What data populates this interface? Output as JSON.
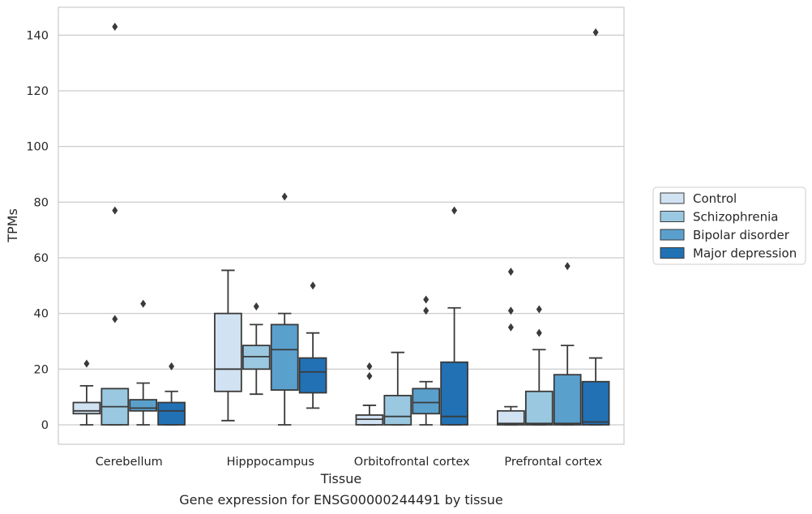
{
  "caption": "Gene expression for ENSG00000244491 by tissue",
  "chart_data": {
    "type": "box",
    "xlabel": "Tissue",
    "ylabel": "TPMs",
    "ylim": [
      -7,
      150
    ],
    "yticks": [
      0,
      20,
      40,
      60,
      80,
      100,
      120,
      140
    ],
    "grid": true,
    "legend_position": "right",
    "categories": [
      "Cerebellum",
      "Hipppocampus",
      "Orbitofrontal cortex",
      "Prefrontal cortex"
    ],
    "series": [
      {
        "name": "Control",
        "color": "#d1e2f2",
        "boxes": [
          {
            "whislo": 0,
            "q1": 4,
            "med": 5,
            "q3": 8,
            "whishi": 14,
            "fliers": [
              22
            ]
          },
          {
            "whislo": 1.5,
            "q1": 12,
            "med": 20,
            "q3": 40,
            "whishi": 55.5,
            "fliers": []
          },
          {
            "whislo": 0,
            "q1": 0,
            "med": 2,
            "q3": 3.5,
            "whishi": 7,
            "fliers": [
              17.5,
              21
            ]
          },
          {
            "whislo": 0,
            "q1": 0,
            "med": 0.5,
            "q3": 5,
            "whishi": 6.5,
            "fliers": [
              35,
              41,
              55
            ]
          }
        ]
      },
      {
        "name": "Schizophrenia",
        "color": "#9ac8e0",
        "boxes": [
          {
            "whislo": 0,
            "q1": 0,
            "med": 6.5,
            "q3": 13,
            "whishi": 13,
            "fliers": [
              38,
              77,
              143
            ]
          },
          {
            "whislo": 11,
            "q1": 20,
            "med": 24.5,
            "q3": 28.5,
            "whishi": 36,
            "fliers": [
              42.5
            ]
          },
          {
            "whislo": 0,
            "q1": 0,
            "med": 3,
            "q3": 10.5,
            "whishi": 26,
            "fliers": []
          },
          {
            "whislo": 0,
            "q1": 0,
            "med": 0.5,
            "q3": 12,
            "whishi": 27,
            "fliers": [
              33,
              41.5
            ]
          }
        ]
      },
      {
        "name": "Bipolar disorder",
        "color": "#5aa0cd",
        "boxes": [
          {
            "whislo": 0,
            "q1": 5,
            "med": 6,
            "q3": 9,
            "whishi": 15,
            "fliers": [
              43.5
            ]
          },
          {
            "whislo": 0,
            "q1": 12.5,
            "med": 27,
            "q3": 36,
            "whishi": 40,
            "fliers": [
              82
            ]
          },
          {
            "whislo": 0,
            "q1": 4,
            "med": 8,
            "q3": 13,
            "whishi": 15.5,
            "fliers": [
              41,
              45
            ]
          },
          {
            "whislo": 0,
            "q1": 0,
            "med": 0.5,
            "q3": 18,
            "whishi": 28.5,
            "fliers": [
              57
            ]
          }
        ]
      },
      {
        "name": "Major depression",
        "color": "#2271b5",
        "boxes": [
          {
            "whislo": 0,
            "q1": 0,
            "med": 5,
            "q3": 8,
            "whishi": 12,
            "fliers": [
              21
            ]
          },
          {
            "whislo": 6,
            "q1": 11.5,
            "med": 19,
            "q3": 24,
            "whishi": 33,
            "fliers": [
              50
            ]
          },
          {
            "whislo": 0,
            "q1": 0,
            "med": 3,
            "q3": 22.5,
            "whishi": 42,
            "fliers": [
              77
            ]
          },
          {
            "whislo": 0,
            "q1": 0,
            "med": 1,
            "q3": 15.5,
            "whishi": 24,
            "fliers": [
              141
            ]
          }
        ]
      }
    ]
  }
}
